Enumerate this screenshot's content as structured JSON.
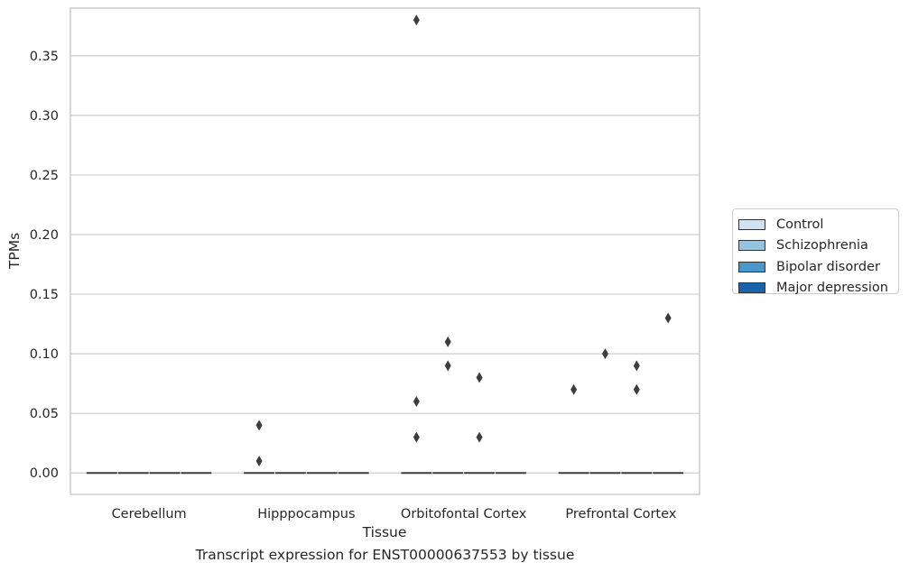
{
  "chart_data": {
    "type": "boxplot",
    "xlabel": "Tissue",
    "ylabel": "TPMs",
    "caption": "Transcript expression for ENST00000637553 by tissue",
    "categories": [
      "Cerebellum",
      "Hipppocampus",
      "Orbitofontal Cortex",
      "Prefrontal Cortex"
    ],
    "ylim": [
      -0.018,
      0.39
    ],
    "yticks": [
      0.0,
      0.05,
      0.1,
      0.15,
      0.2,
      0.25,
      0.3,
      0.35
    ],
    "ytick_labels": [
      "0.00",
      "0.05",
      "0.10",
      "0.15",
      "0.20",
      "0.25",
      "0.30",
      "0.35"
    ],
    "grid": true,
    "legend_position": "right",
    "series": [
      {
        "name": "Control",
        "color": "#d0e1f2",
        "medians": [
          0.0,
          0.0,
          0.0,
          0.0
        ],
        "outliers": [
          [],
          [
            0.04,
            0.01
          ],
          [
            0.38,
            0.06,
            0.03
          ],
          [
            0.07
          ]
        ]
      },
      {
        "name": "Schizophrenia",
        "color": "#94c4df",
        "medians": [
          0.0,
          0.0,
          0.0,
          0.0
        ],
        "outliers": [
          [],
          [],
          [
            0.11,
            0.09
          ],
          [
            0.1
          ]
        ]
      },
      {
        "name": "Bipolar disorder",
        "color": "#4a98c9",
        "medians": [
          0.0,
          0.0,
          0.0,
          0.0
        ],
        "outliers": [
          [],
          [],
          [
            0.08,
            0.03
          ],
          [
            0.09,
            0.07
          ]
        ]
      },
      {
        "name": "Major depression",
        "color": "#1764ab",
        "medians": [
          0.0,
          0.0,
          0.0,
          0.0
        ],
        "outliers": [
          [],
          [],
          [],
          [
            0.13
          ]
        ]
      }
    ]
  }
}
